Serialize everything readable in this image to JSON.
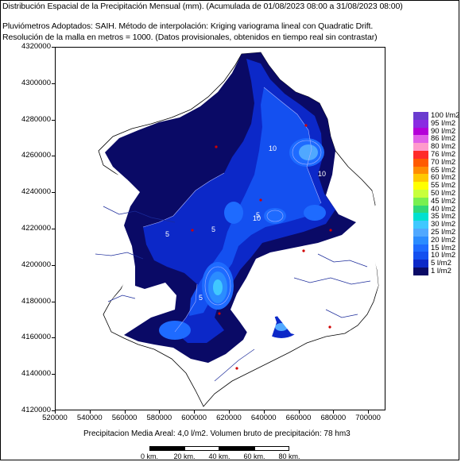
{
  "header": {
    "title": "Distribución Espacial de la Precipitación Mensual (mm). (Acumulada de 01/08/2023 08:00 a 31/08/2023 08:00)",
    "method": "Pluviómetros Adoptados: SAIH.  Método de interpolación: Kriging variograma lineal con Quadratic Drift.",
    "resolution": "Resolución de la malla en metros = 1000. (Datos provisionales, obtenidos en tiempo real sin contrastar)"
  },
  "axes": {
    "y_ticks": [
      "4320000",
      "4300000",
      "4280000",
      "4260000",
      "4240000",
      "4220000",
      "4200000",
      "4180000",
      "4160000",
      "4140000",
      "4120000"
    ],
    "x_ticks": [
      "520000",
      "540000",
      "560000",
      "580000",
      "600000",
      "620000",
      "640000",
      "660000",
      "680000",
      "700000"
    ],
    "x_range": [
      520000,
      710000
    ],
    "y_range": [
      4120000,
      4320000
    ]
  },
  "legend": {
    "items": [
      {
        "label": "100 l/m2",
        "color": "#6a3ccf"
      },
      {
        "label": "95 l/m2",
        "color": "#8a2be2"
      },
      {
        "label": "90 l/m2",
        "color": "#b400d8"
      },
      {
        "label": "86 l/m2",
        "color": "#e060e8"
      },
      {
        "label": "80 l/m2",
        "color": "#ff9acb"
      },
      {
        "label": "76 l/m2",
        "color": "#ff2a2a"
      },
      {
        "label": "70 l/m2",
        "color": "#ff5a00"
      },
      {
        "label": "65 l/m2",
        "color": "#ff8c00"
      },
      {
        "label": "60 l/m2",
        "color": "#ffc800"
      },
      {
        "label": "55 l/m2",
        "color": "#ffff00"
      },
      {
        "label": "50 l/m2",
        "color": "#c8ff3c"
      },
      {
        "label": "45 l/m2",
        "color": "#78f050"
      },
      {
        "label": "40 l/m2",
        "color": "#30d878"
      },
      {
        "label": "35 l/m2",
        "color": "#00e0d0"
      },
      {
        "label": "30 l/m2",
        "color": "#40c8ff"
      },
      {
        "label": "25 l/m2",
        "color": "#50a8ff"
      },
      {
        "label": "20 l/m2",
        "color": "#2b8cff"
      },
      {
        "label": "15 l/m2",
        "color": "#1e6bff"
      },
      {
        "label": "10 l/m2",
        "color": "#1450f0"
      },
      {
        "label": "5 l/m2",
        "color": "#0c28c8"
      },
      {
        "label": "1 l/m2",
        "color": "#0a0a66"
      }
    ]
  },
  "contour_labels": [
    "10",
    "10",
    "10",
    "5",
    "5",
    "5",
    "5"
  ],
  "summary": "Precipitacion Media Areal: 4,0 l/m2. Volumen bruto de precipitación: 78 hm3",
  "scale": {
    "labels": [
      "0 km.",
      "20 km.",
      "40 km.",
      "60 km.",
      "80 km."
    ]
  }
}
